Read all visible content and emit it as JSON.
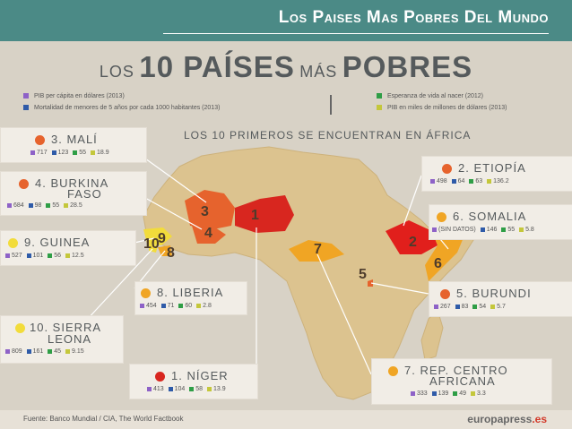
{
  "slide_title": "Los Paises Mas Pobres Del Mundo",
  "heading": {
    "small1": "LOS",
    "big": "10 PAÍSES",
    "small2": "MÁS",
    "big2": "POBRES"
  },
  "legend": {
    "left": [
      {
        "color": "#8e62c7",
        "label": "PIB per cápita en dólares (2013)"
      },
      {
        "color": "#2f5ba8",
        "label": "Mortalidad de menores de 5 años por cada 1000 habitantes (2013)"
      }
    ],
    "right": [
      {
        "color": "#2f9e46",
        "label": "Esperanza de vida al nacer (2012)"
      },
      {
        "color": "#c4c73b",
        "label": "PIB en miles de millones de dólares (2013)"
      }
    ]
  },
  "subhead": "LOS 10 PRIMEROS SE ENCUENTRAN EN ÁFRICA",
  "colors": {
    "purple": "#8e62c7",
    "blue": "#2f5ba8",
    "green": "#2f9e46",
    "yellow": "#c4c73b"
  },
  "countries": {
    "mali": {
      "name": "3. MALÍ",
      "dot": "#e6632d",
      "v1": "717",
      "v2": "123",
      "v3": "55",
      "v4": "18.9"
    },
    "burkina": {
      "name1": "4. BURKINA",
      "name2": "FASO",
      "dot": "#e6632d",
      "v1": "684",
      "v2": "98",
      "v3": "55",
      "v4": "28.5"
    },
    "guinea": {
      "name": "9. GUINEA",
      "dot": "#f2dc3b",
      "v1": "527",
      "v2": "101",
      "v3": "56",
      "v4": "12.5"
    },
    "sierra": {
      "name1": "10. SIERRA",
      "name2": "LEONA",
      "dot": "#f2dc3b",
      "v1": "809",
      "v2": "161",
      "v3": "45",
      "v4": "9.15"
    },
    "liberia": {
      "name": "8. LIBERIA",
      "dot": "#f0a524",
      "v1": "454",
      "v2": "71",
      "v3": "60",
      "v4": "2.8"
    },
    "niger": {
      "name": "1. NÍGER",
      "dot": "#d8261f",
      "v1": "413",
      "v2": "104",
      "v3": "58",
      "v4": "13.9"
    },
    "etiopia": {
      "name": "2. ETIOPÍA",
      "dot": "#e6632d",
      "v1": "498",
      "v2": "64",
      "v3": "63",
      "v4": "136.2"
    },
    "somalia": {
      "name": "6. SOMALIA",
      "dot": "#f0a524",
      "v1": "(SIN DATOS)",
      "v2": "146",
      "v3": "55",
      "v4": "5.8"
    },
    "burundi": {
      "name": "5. BURUNDI",
      "dot": "#e6632d",
      "v1": "267",
      "v2": "83",
      "v3": "54",
      "v4": "5.7"
    },
    "rca": {
      "name1": "7. REP. CENTRO",
      "name2": "AFRICANA",
      "dot": "#f0a524",
      "v1": "333",
      "v2": "139",
      "v3": "49",
      "v4": "3.3"
    }
  },
  "map_numbers": [
    "1",
    "2",
    "3",
    "4",
    "5",
    "6",
    "7",
    "8",
    "9",
    "10"
  ],
  "footer": {
    "source": "Fuente: Banco Mundial / CIA, The World Factbook",
    "logo_main": "europapress",
    "logo_suffix": ".es"
  }
}
